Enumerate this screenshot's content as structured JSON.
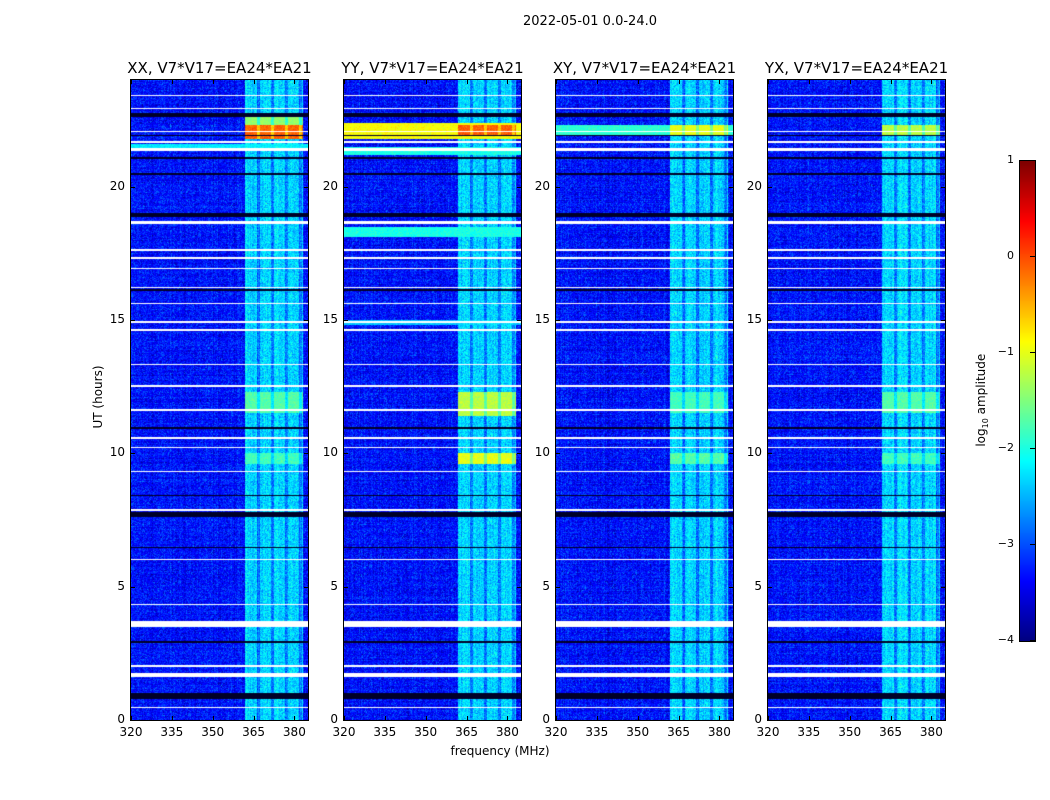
{
  "chart_data": {
    "type": "heatmap",
    "suptitle": "2022-05-01 0.0-24.0",
    "xlabel": "frequency (MHz)",
    "ylabel": "UT (hours)",
    "xlim": [
      320,
      385
    ],
    "ylim": [
      0,
      24
    ],
    "xticks": [
      320,
      335,
      350,
      365,
      380
    ],
    "yticks": [
      0,
      5,
      10,
      15,
      20
    ],
    "colorbar": {
      "label": "log10 amplitude",
      "label_main": "log",
      "label_sub": "10",
      "label_rest": " amplitude",
      "range": [
        -4,
        1
      ],
      "ticks": [
        1,
        0,
        -1,
        -2,
        -3,
        -4
      ],
      "tick_labels": [
        "1",
        "0",
        "−1",
        "−2",
        "−3",
        "−4"
      ],
      "colormap": "jet"
    },
    "background_level": -3.3,
    "rfi_band_mhz": [
      362,
      383
    ],
    "rfi_band_level": -2.6,
    "flagged_white_ut": [
      [
        0.45,
        0.5
      ],
      [
        1.6,
        1.75
      ],
      [
        2.0,
        2.05
      ],
      [
        3.5,
        3.7
      ],
      [
        4.3,
        4.35
      ],
      [
        6.0,
        6.05
      ],
      [
        7.85,
        7.9
      ],
      [
        9.3,
        9.35
      ],
      [
        10.2,
        10.25
      ],
      [
        10.55,
        10.6
      ],
      [
        11.6,
        11.65
      ],
      [
        12.5,
        12.55
      ],
      [
        13.3,
        13.35
      ],
      [
        14.6,
        14.65
      ],
      [
        14.9,
        14.95
      ],
      [
        15.6,
        15.65
      ],
      [
        16.2,
        16.25
      ],
      [
        16.9,
        16.95
      ],
      [
        17.3,
        17.35
      ],
      [
        17.6,
        17.65
      ],
      [
        18.6,
        18.7
      ],
      [
        21.35,
        21.45
      ],
      [
        21.65,
        21.7
      ],
      [
        22.05,
        22.1
      ],
      [
        22.9,
        22.95
      ],
      [
        23.4,
        23.45
      ]
    ],
    "flagged_black_ut": [
      [
        0.8,
        1.0
      ],
      [
        2.9,
        2.95
      ],
      [
        6.45,
        6.5
      ],
      [
        7.6,
        7.8
      ],
      [
        8.4,
        8.45
      ],
      [
        10.9,
        11.0
      ],
      [
        16.1,
        16.15
      ],
      [
        18.85,
        19.0
      ],
      [
        20.45,
        20.5
      ],
      [
        21.05,
        21.1
      ],
      [
        21.9,
        21.95
      ],
      [
        22.6,
        22.75
      ]
    ],
    "panels": [
      {
        "title": "XX, V7*V17=EA24*EA21",
        "events": [
          {
            "ut": [
              21.8,
              22.3
            ],
            "band": "rfi",
            "level": -0.1
          },
          {
            "ut": [
              22.3,
              22.6
            ],
            "band": "rfi",
            "level": -1.4
          },
          {
            "ut": [
              21.4,
              21.6
            ],
            "band": "all",
            "level": -2.2
          },
          {
            "ut": [
              9.6,
              10.0
            ],
            "band": "rfi",
            "level": -1.8
          },
          {
            "ut": [
              11.5,
              12.3
            ],
            "band": "rfi",
            "level": -1.7
          }
        ]
      },
      {
        "title": "YY, V7*V17=EA24*EA21",
        "events": [
          {
            "ut": [
              21.8,
              22.4
            ],
            "band": "all",
            "level": -0.9
          },
          {
            "ut": [
              21.9,
              22.3
            ],
            "band": "rfi",
            "level": -0.1
          },
          {
            "ut": [
              21.2,
              21.5
            ],
            "band": "all",
            "level": -2.0
          },
          {
            "ut": [
              18.1,
              18.5
            ],
            "band": "all",
            "level": -2.0
          },
          {
            "ut": [
              9.6,
              10.0
            ],
            "band": "rfi",
            "level": -1.0
          },
          {
            "ut": [
              11.4,
              12.3
            ],
            "band": "rfi",
            "level": -1.2
          },
          {
            "ut": [
              14.8,
              15.0
            ],
            "band": "all",
            "level": -2.4
          }
        ]
      },
      {
        "title": "XY, V7*V17=EA24*EA21",
        "events": [
          {
            "ut": [
              21.9,
              22.3
            ],
            "band": "all",
            "level": -1.9
          },
          {
            "ut": [
              21.9,
              22.3
            ],
            "band": "rfi",
            "level": -1.0
          },
          {
            "ut": [
              9.6,
              10.0
            ],
            "band": "rfi",
            "level": -1.7
          },
          {
            "ut": [
              11.5,
              12.3
            ],
            "band": "rfi",
            "level": -1.8
          }
        ]
      },
      {
        "title": "YX, V7*V17=EA24*EA21",
        "events": [
          {
            "ut": [
              21.9,
              22.3
            ],
            "band": "rfi",
            "level": -1.2
          },
          {
            "ut": [
              9.6,
              10.0
            ],
            "band": "rfi",
            "level": -1.8
          },
          {
            "ut": [
              11.5,
              12.3
            ],
            "band": "rfi",
            "level": -1.7
          }
        ]
      }
    ]
  }
}
